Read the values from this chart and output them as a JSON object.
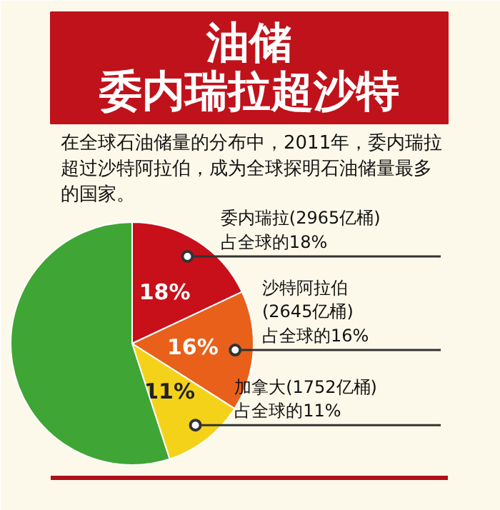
{
  "chart_data": {
    "type": "pie",
    "title": "油储",
    "subtitle": "委内瑞拉超沙特",
    "annotations": [
      "在全球石油储量的分布中，2011年，委内瑞拉超过沙特阿拉伯，成为全球探明石油储量最多的国家。"
    ],
    "categories": [
      "委内瑞拉(2965亿桶)\n占全球的18%",
      "沙特阿拉伯\n(2645亿桶)\n占全球的16%",
      "加拿大(1752亿桶)\n占全球的11%",
      null
    ],
    "values": [
      18,
      16,
      11,
      55
    ],
    "colors": [
      "#c8101a",
      "#e8601a",
      "#f5d21a",
      "#3fa535"
    ],
    "value_labels": [
      "18%",
      "16%",
      "11%",
      null
    ]
  }
}
